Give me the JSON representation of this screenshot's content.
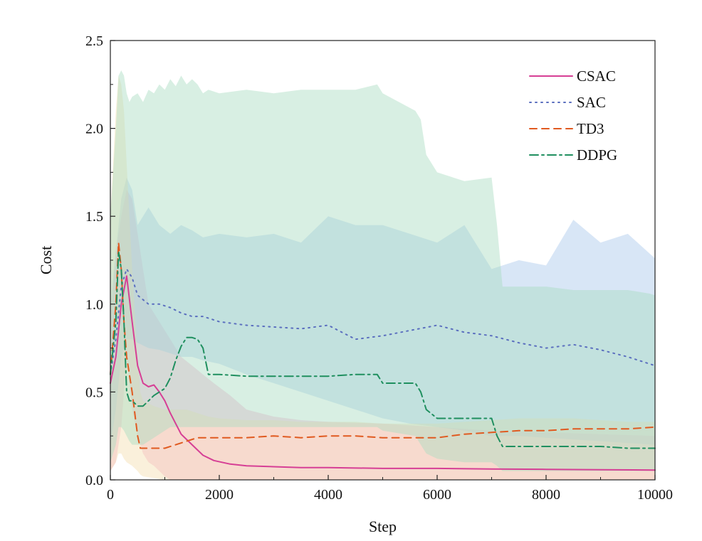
{
  "chart_data": {
    "type": "line",
    "xlabel": "Step",
    "ylabel": "Cost",
    "xlim": [
      0,
      10000
    ],
    "ylim": [
      0,
      2.5
    ],
    "xticks": [
      0,
      2000,
      4000,
      6000,
      8000,
      10000
    ],
    "xtick_labels": [
      "0",
      "2000",
      "4000",
      "6000",
      "8000",
      "10000"
    ],
    "yticks": [
      0,
      0.5,
      1.0,
      1.5,
      2.0,
      2.5
    ],
    "ytick_labels": [
      "0.0",
      "0.5",
      "1.0",
      "1.5",
      "2.0",
      "2.5"
    ],
    "grid": false,
    "legend_position": "top-right",
    "series": [
      {
        "name": "CSAC",
        "color": "#d63f95",
        "fill": "#f4a7cc",
        "dash": "solid",
        "x": [
          0,
          100,
          200,
          300,
          400,
          500,
          600,
          700,
          800,
          900,
          1000,
          1100,
          1200,
          1300,
          1500,
          1700,
          1900,
          2200,
          2500,
          3000,
          3500,
          4000,
          5000,
          6000,
          7000,
          8000,
          9000,
          10000
        ],
        "y": [
          0.55,
          0.7,
          1.0,
          1.16,
          0.9,
          0.65,
          0.55,
          0.53,
          0.54,
          0.5,
          0.45,
          0.38,
          0.32,
          0.26,
          0.2,
          0.14,
          0.11,
          0.09,
          0.08,
          0.075,
          0.07,
          0.07,
          0.065,
          0.065,
          0.062,
          0.06,
          0.058,
          0.056
        ],
        "upper": [
          0.9,
          1.3,
          1.5,
          1.65,
          1.6,
          1.4,
          1.2,
          1.0,
          0.95,
          0.9,
          0.85,
          0.8,
          0.75,
          0.7,
          0.65,
          0.6,
          0.55,
          0.48,
          0.4,
          0.36,
          0.34,
          0.33,
          0.32,
          0.3,
          0.28,
          0.27,
          0.26,
          0.25
        ],
        "lower": [
          0.05,
          0.1,
          0.3,
          0.7,
          0.4,
          0.25,
          0.15,
          0.1,
          0.08,
          0.05,
          0.02,
          0.0,
          0.0,
          0.0,
          0.0,
          0.0,
          0.0,
          0.0,
          0.0,
          0.0,
          0.0,
          0.0,
          0.0,
          0.0,
          0.0,
          0.0,
          0.0,
          0.0
        ]
      },
      {
        "name": "SAC",
        "color": "#5b6fbf",
        "fill": "#a9c8ec",
        "dash": "dotted",
        "x": [
          0,
          100,
          200,
          300,
          400,
          500,
          700,
          900,
          1100,
          1300,
          1500,
          1700,
          2000,
          2500,
          3000,
          3500,
          4000,
          4500,
          5000,
          5500,
          6000,
          6500,
          7000,
          7500,
          8000,
          8500,
          9000,
          9500,
          10000
        ],
        "y": [
          0.6,
          0.8,
          1.1,
          1.2,
          1.15,
          1.05,
          1.0,
          1.0,
          0.98,
          0.95,
          0.93,
          0.93,
          0.9,
          0.88,
          0.87,
          0.86,
          0.88,
          0.8,
          0.82,
          0.85,
          0.88,
          0.84,
          0.82,
          0.78,
          0.75,
          0.77,
          0.74,
          0.7,
          0.65
        ],
        "upper": [
          1.0,
          1.3,
          1.6,
          1.72,
          1.65,
          1.45,
          1.55,
          1.45,
          1.4,
          1.45,
          1.42,
          1.38,
          1.4,
          1.38,
          1.4,
          1.35,
          1.5,
          1.45,
          1.45,
          1.4,
          1.35,
          1.45,
          1.2,
          1.25,
          1.22,
          1.48,
          1.35,
          1.4,
          1.26
        ],
        "lower": [
          0.2,
          0.4,
          0.7,
          0.8,
          0.8,
          0.78,
          0.75,
          0.74,
          0.72,
          0.7,
          0.7,
          0.68,
          0.66,
          0.6,
          0.55,
          0.5,
          0.45,
          0.4,
          0.35,
          0.32,
          0.3,
          0.28,
          0.25,
          0.25,
          0.24,
          0.23,
          0.22,
          0.21,
          0.2
        ]
      },
      {
        "name": "TD3",
        "color": "#e05a20",
        "fill": "#f3ddb0",
        "dash": "dashed",
        "x": [
          0,
          100,
          150,
          200,
          250,
          300,
          400,
          500,
          550,
          600,
          800,
          1000,
          1200,
          1400,
          1600,
          1800,
          2000,
          2500,
          3000,
          3500,
          4000,
          4500,
          5000,
          5500,
          6000,
          6500,
          7000,
          7500,
          8000,
          8500,
          9000,
          9500,
          10000
        ],
        "y": [
          0.6,
          1.0,
          1.35,
          1.2,
          0.9,
          0.7,
          0.5,
          0.25,
          0.18,
          0.18,
          0.18,
          0.18,
          0.2,
          0.22,
          0.24,
          0.24,
          0.24,
          0.24,
          0.25,
          0.24,
          0.25,
          0.25,
          0.24,
          0.24,
          0.24,
          0.26,
          0.27,
          0.28,
          0.28,
          0.29,
          0.29,
          0.29,
          0.3
        ],
        "upper": [
          1.5,
          2.1,
          2.3,
          2.25,
          2.1,
          1.8,
          1.2,
          0.7,
          0.5,
          0.45,
          0.42,
          0.4,
          0.4,
          0.4,
          0.38,
          0.36,
          0.35,
          0.34,
          0.34,
          0.33,
          0.33,
          0.33,
          0.32,
          0.32,
          0.32,
          0.33,
          0.34,
          0.35,
          0.35,
          0.35,
          0.34,
          0.33,
          0.33
        ],
        "lower": [
          0.05,
          0.1,
          0.15,
          0.15,
          0.12,
          0.1,
          0.08,
          0.05,
          0.03,
          0.02,
          0.01,
          0.0,
          0.0,
          0.0,
          0.0,
          0.0,
          0.0,
          0.0,
          0.0,
          0.0,
          0.0,
          0.0,
          0.0,
          0.0,
          0.0,
          0.0,
          0.0,
          0.0,
          0.0,
          0.0,
          0.0,
          0.0,
          0.0
        ]
      },
      {
        "name": "DDPG",
        "color": "#1f8f5f",
        "fill": "#a8dcc2",
        "dash": "dashdot",
        "x": [
          0,
          100,
          150,
          200,
          250,
          300,
          350,
          400,
          500,
          600,
          700,
          800,
          900,
          1000,
          1100,
          1200,
          1300,
          1400,
          1500,
          1600,
          1700,
          1800,
          2000,
          2500,
          3000,
          3500,
          4000,
          4500,
          4900,
          5000,
          5600,
          5700,
          5800,
          6000,
          6500,
          7000,
          7100,
          7200,
          7500,
          8000,
          8500,
          9000,
          9500,
          9900,
          10000
        ],
        "y": [
          0.6,
          0.9,
          1.3,
          1.2,
          0.9,
          0.5,
          0.45,
          0.45,
          0.42,
          0.42,
          0.45,
          0.48,
          0.5,
          0.52,
          0.58,
          0.68,
          0.76,
          0.81,
          0.81,
          0.8,
          0.75,
          0.6,
          0.6,
          0.59,
          0.59,
          0.59,
          0.59,
          0.6,
          0.6,
          0.55,
          0.55,
          0.5,
          0.4,
          0.35,
          0.35,
          0.35,
          0.25,
          0.19,
          0.19,
          0.19,
          0.19,
          0.19,
          0.18,
          0.18,
          0.18
        ],
        "upper": [
          1.5,
          2.0,
          2.3,
          2.33,
          2.3,
          2.2,
          2.15,
          2.18,
          2.2,
          2.15,
          2.22,
          2.2,
          2.25,
          2.22,
          2.28,
          2.24,
          2.3,
          2.25,
          2.28,
          2.25,
          2.2,
          2.22,
          2.2,
          2.22,
          2.2,
          2.22,
          2.22,
          2.22,
          2.25,
          2.2,
          2.1,
          2.05,
          1.85,
          1.75,
          1.7,
          1.72,
          1.45,
          1.1,
          1.1,
          1.1,
          1.08,
          1.08,
          1.08,
          1.06,
          1.05
        ],
        "lower": [
          0.1,
          0.2,
          0.3,
          0.3,
          0.28,
          0.25,
          0.22,
          0.2,
          0.2,
          0.2,
          0.22,
          0.24,
          0.26,
          0.28,
          0.3,
          0.3,
          0.3,
          0.3,
          0.3,
          0.3,
          0.3,
          0.3,
          0.3,
          0.3,
          0.3,
          0.3,
          0.3,
          0.3,
          0.3,
          0.28,
          0.25,
          0.2,
          0.15,
          0.12,
          0.1,
          0.1,
          0.08,
          0.05,
          0.05,
          0.05,
          0.05,
          0.05,
          0.05,
          0.05,
          0.05
        ]
      }
    ]
  }
}
